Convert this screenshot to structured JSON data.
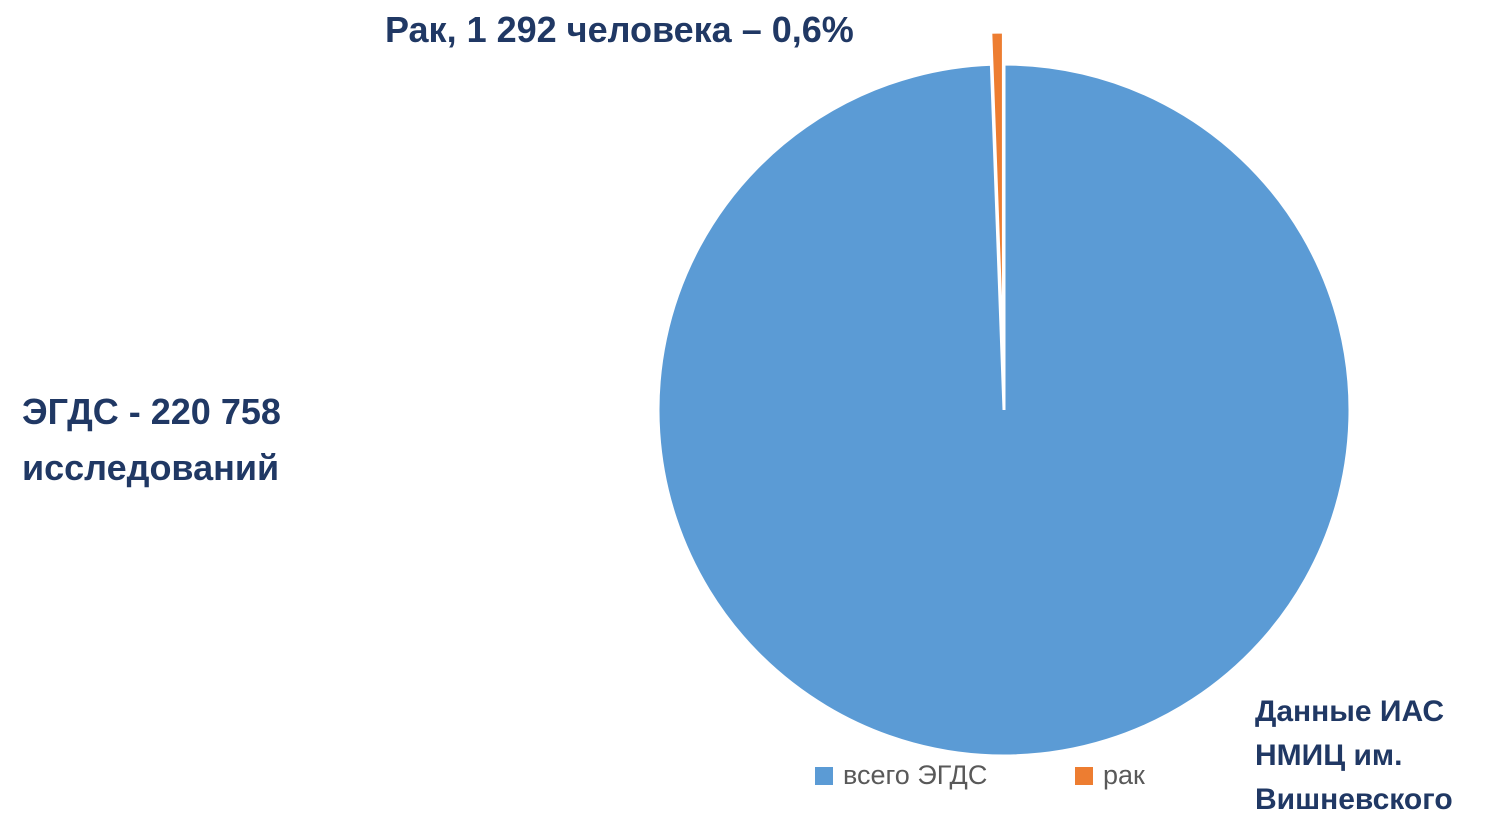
{
  "chart_data": {
    "type": "pie",
    "categories": [
      "всего ЭГДС",
      "рак"
    ],
    "values": [
      220758,
      1292
    ],
    "value_labels": [
      "ЭГДС - 220 758 исследований",
      "Рак, 1 292 человека – 0,6%"
    ],
    "colors": [
      "#5b9bd5",
      "#ed7d31"
    ],
    "annotation": "Данные ИАС НМИЦ им. Вишневского",
    "legend": "bottom"
  }
}
